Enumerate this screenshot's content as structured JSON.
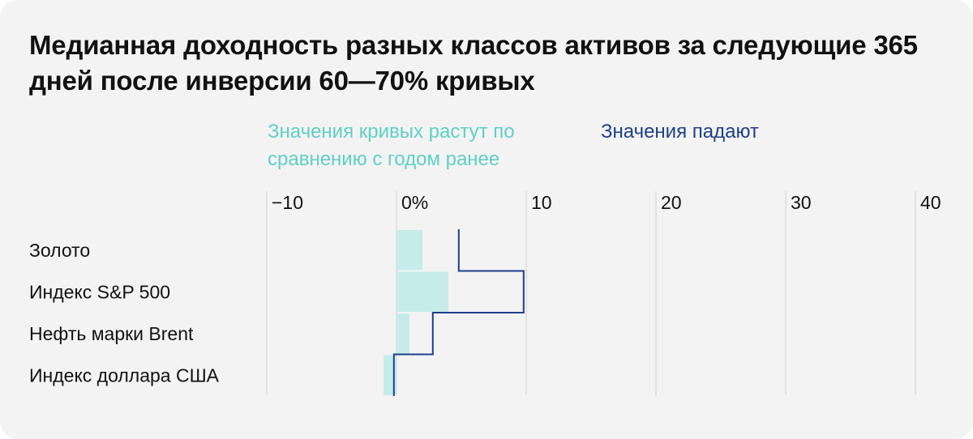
{
  "chart_data": {
    "type": "bar",
    "title": "Медианная доходность разных классов активов за следующие 365 дней после инверсии 60—70% кривых",
    "categories": [
      "Золото",
      "Индекс S&P 500",
      "Нефть марки Brent",
      "Индекс доллара США"
    ],
    "series": [
      {
        "name": "Значения кривых растут по сравнению с годом ранее",
        "color": "#c6ecea",
        "text_color": "#5fd0c6",
        "style": "filled-bars",
        "values": [
          2.0,
          4.0,
          1.0,
          -1.0
        ]
      },
      {
        "name": "Значения падают",
        "color": "#1e3f8a",
        "text_color": "#1e3f8a",
        "style": "step-outline",
        "values": [
          4.8,
          9.8,
          2.8,
          -0.2
        ]
      }
    ],
    "xlim": [
      -10,
      40
    ],
    "ticks": [
      -10,
      0,
      10,
      20,
      30,
      40
    ],
    "tick_labels": [
      "−10",
      "0%",
      "10",
      "20",
      "30",
      "40"
    ],
    "grid": true,
    "legend_position": "top-left"
  },
  "colors": {
    "background": "#f3f3f3",
    "grid": "#dddddd",
    "rising": "#c6ecea",
    "rising_text": "#5fd0c6",
    "falling": "#1e3f8a"
  }
}
